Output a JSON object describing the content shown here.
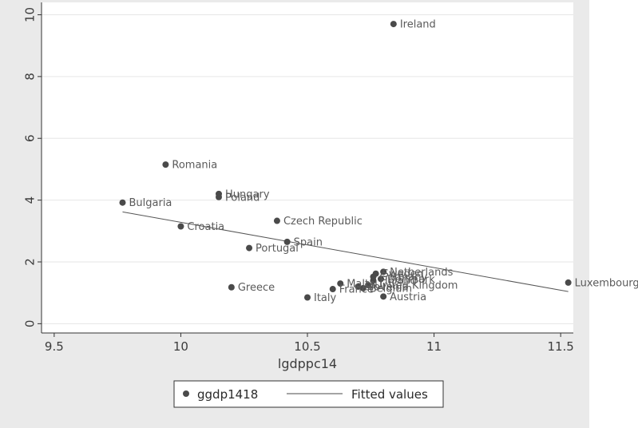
{
  "chart_data": {
    "type": "scatter",
    "title": "",
    "xlabel": "lgdppc14",
    "ylabel": "",
    "xlim": [
      9.45,
      11.55
    ],
    "ylim": [
      -0.3,
      10.4
    ],
    "xticks": [
      9.5,
      10,
      10.5,
      11,
      11.5
    ],
    "yticks": [
      0,
      2,
      4,
      6,
      8,
      10
    ],
    "xtick_labels": [
      "9.5",
      "10",
      "10.5",
      "11",
      "11.5"
    ],
    "ytick_labels": [
      "0",
      "2",
      "4",
      "6",
      "8",
      "10"
    ],
    "grid": "horizontal",
    "series": [
      {
        "name": "ggdp1418",
        "kind": "scatter",
        "points": [
          {
            "label": "Ireland",
            "x": 10.84,
            "y": 9.7
          },
          {
            "label": "Romania",
            "x": 9.94,
            "y": 5.15
          },
          {
            "label": "Hungary",
            "x": 10.15,
            "y": 4.2
          },
          {
            "label": "Poland",
            "x": 10.15,
            "y": 4.1
          },
          {
            "label": "Bulgaria",
            "x": 9.77,
            "y": 3.92
          },
          {
            "label": "Czech Republic",
            "x": 10.38,
            "y": 3.33
          },
          {
            "label": "Croatia",
            "x": 10.0,
            "y": 3.15
          },
          {
            "label": "Spain",
            "x": 10.42,
            "y": 2.65
          },
          {
            "label": "Portugal",
            "x": 10.27,
            "y": 2.45
          },
          {
            "label": "Netherlands",
            "x": 10.8,
            "y": 1.68
          },
          {
            "label": "Sweden",
            "x": 10.77,
            "y": 1.62
          },
          {
            "label": "Germany",
            "x": 10.76,
            "y": 1.52
          },
          {
            "label": "Denmark",
            "x": 10.79,
            "y": 1.45
          },
          {
            "label": "Finland",
            "x": 10.76,
            "y": 1.4
          },
          {
            "label": "Luxembourg",
            "x": 11.53,
            "y": 1.33
          },
          {
            "label": "Malta",
            "x": 10.63,
            "y": 1.3
          },
          {
            "label": "United Kingdom",
            "x": 10.74,
            "y": 1.25
          },
          {
            "label": "Slovenia",
            "x": 10.7,
            "y": 1.2
          },
          {
            "label": "Greece",
            "x": 10.2,
            "y": 1.18
          },
          {
            "label": "Belgium",
            "x": 10.72,
            "y": 1.15
          },
          {
            "label": "France",
            "x": 10.6,
            "y": 1.12
          },
          {
            "label": "Austria",
            "x": 10.8,
            "y": 0.88
          },
          {
            "label": "Italy",
            "x": 10.5,
            "y": 0.85
          }
        ]
      },
      {
        "name": "Fitted values",
        "kind": "line",
        "x": [
          9.77,
          11.53
        ],
        "y": [
          3.62,
          1.04
        ]
      }
    ],
    "legend": {
      "position": "bottom",
      "entries": [
        "ggdp1418",
        "Fitted values"
      ]
    }
  }
}
